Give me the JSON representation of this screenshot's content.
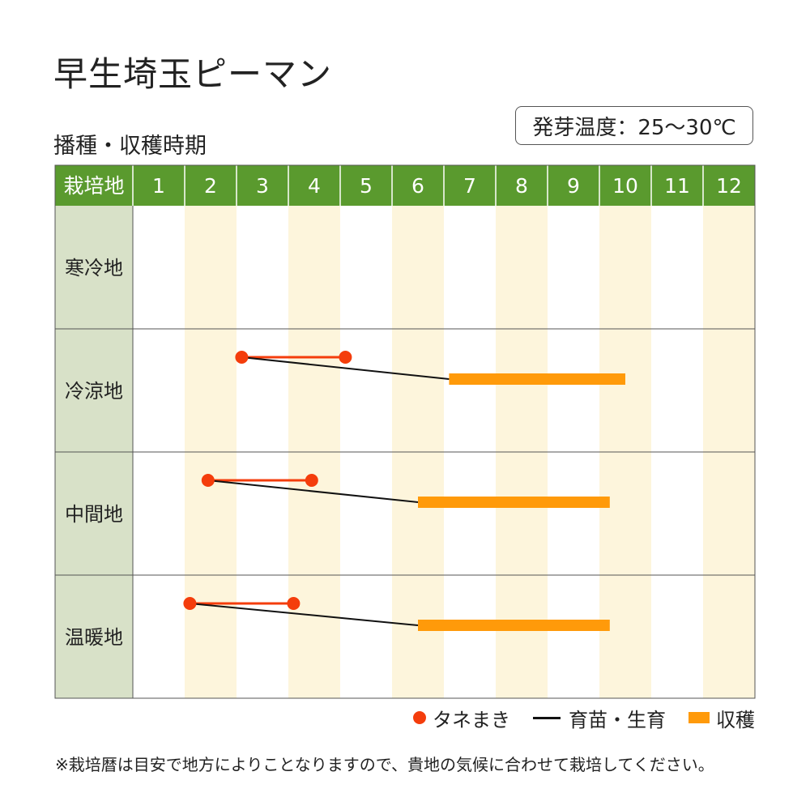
{
  "title": "早生埼玉ピーマン",
  "subtitle": "播種・収穫時期",
  "germination_temp": "発芽温度：25〜30℃",
  "colors": {
    "header_green": "#5a9a2e",
    "label_column": "#d8e1c8",
    "even_month_shade": "#fdf5dc",
    "sowing_red": "#f43d0c",
    "harvest_orange": "#ff9a0a",
    "nursery_black": "#111111"
  },
  "legend": {
    "sowing": "タネまき",
    "nursery": "育苗・生育",
    "harvest": "収穫"
  },
  "footnote": "※栽培暦は目安で地方によりことなりますので、貴地の気候に合わせて栽培してください。",
  "chart_data": {
    "type": "gantt",
    "header_label": "栽培地",
    "months": [
      "1",
      "2",
      "3",
      "4",
      "5",
      "6",
      "7",
      "8",
      "9",
      "10",
      "11",
      "12"
    ],
    "regions": [
      {
        "name": "寒冷地",
        "sowing": null,
        "harvest": null
      },
      {
        "name": "冷涼地",
        "sowing": [
          3.1,
          5.1
        ],
        "harvest": [
          7.1,
          10.5
        ]
      },
      {
        "name": "中間地",
        "sowing": [
          2.45,
          4.45
        ],
        "harvest": [
          6.5,
          10.2
        ]
      },
      {
        "name": "温暖地",
        "sowing": [
          2.1,
          4.1
        ],
        "harvest": [
          6.5,
          10.2
        ]
      }
    ]
  }
}
